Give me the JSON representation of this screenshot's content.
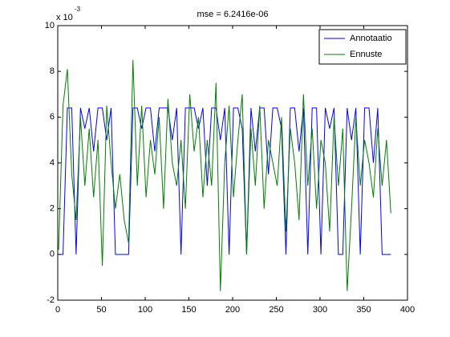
{
  "chart_data": {
    "type": "line",
    "title": "mse = 6.2416e-06",
    "y_multiplier_base": "x 10",
    "y_multiplier_exponent": "-3",
    "xlim": [
      0,
      400
    ],
    "xticks": [
      0,
      50,
      100,
      150,
      200,
      250,
      300,
      350,
      400
    ],
    "ylim": [
      -2,
      10
    ],
    "yticks": [
      -2,
      0,
      2,
      4,
      6,
      8,
      10
    ],
    "legend_position": "upper right",
    "x": [
      1,
      6,
      11,
      16,
      21,
      26,
      31,
      36,
      41,
      46,
      51,
      56,
      61,
      66,
      71,
      76,
      81,
      86,
      91,
      96,
      101,
      106,
      111,
      116,
      121,
      126,
      131,
      136,
      141,
      146,
      151,
      156,
      161,
      166,
      171,
      176,
      181,
      186,
      191,
      196,
      201,
      206,
      211,
      216,
      221,
      226,
      231,
      236,
      241,
      246,
      251,
      256,
      261,
      266,
      271,
      276,
      281,
      286,
      291,
      296,
      301,
      306,
      311,
      316,
      321,
      326,
      331,
      336,
      341,
      346,
      351,
      356,
      361,
      366,
      371,
      376,
      381
    ],
    "series": [
      {
        "name": "Annotaatio",
        "color": "#0000ff",
        "values": [
          0,
          0,
          6.4,
          6.4,
          0,
          6.4,
          5.5,
          6.4,
          4.5,
          6.4,
          6.4,
          5,
          6.4,
          0,
          0,
          0,
          0,
          6.4,
          6.4,
          5.5,
          6.4,
          6.4,
          4.5,
          6.4,
          6.4,
          6.4,
          5,
          6.4,
          0,
          6.4,
          6.4,
          6.4,
          5.5,
          6.4,
          3,
          6.4,
          6.4,
          5,
          6.4,
          0,
          6.4,
          6.4,
          5.5,
          0,
          6.4,
          4.5,
          6.4,
          6.4,
          3.5,
          6.4,
          6.4,
          5.5,
          0,
          6.4,
          6.4,
          4.5,
          6.4,
          0,
          6.4,
          6.4,
          0,
          6.4,
          5.5,
          6.4,
          0,
          0,
          6.4,
          5,
          6.4,
          0,
          6.4,
          6.4,
          4,
          6.4,
          0,
          0,
          0
        ]
      },
      {
        "name": "Ennuste",
        "color": "#008000",
        "values": [
          0.2,
          6.5,
          8.1,
          3.5,
          1.5,
          6,
          3,
          5.5,
          2.5,
          5,
          -0.5,
          6.5,
          4,
          2,
          3.5,
          1.5,
          0.5,
          8.5,
          3,
          6.5,
          2.5,
          5,
          3.5,
          6,
          2,
          6.8,
          4,
          3,
          5,
          2,
          7,
          4.5,
          6,
          2.5,
          5,
          3,
          7.5,
          -1.6,
          4,
          6.5,
          2.5,
          5,
          7,
          0,
          5.5,
          3,
          6.5,
          2,
          5,
          4,
          3,
          6,
          1,
          5.5,
          4,
          1.5,
          7,
          3,
          5.5,
          2,
          5,
          4,
          1,
          6,
          3,
          5.5,
          -1.6,
          2,
          6,
          3,
          5,
          4,
          2.5,
          5.5,
          3,
          5,
          1.8
        ]
      }
    ]
  }
}
